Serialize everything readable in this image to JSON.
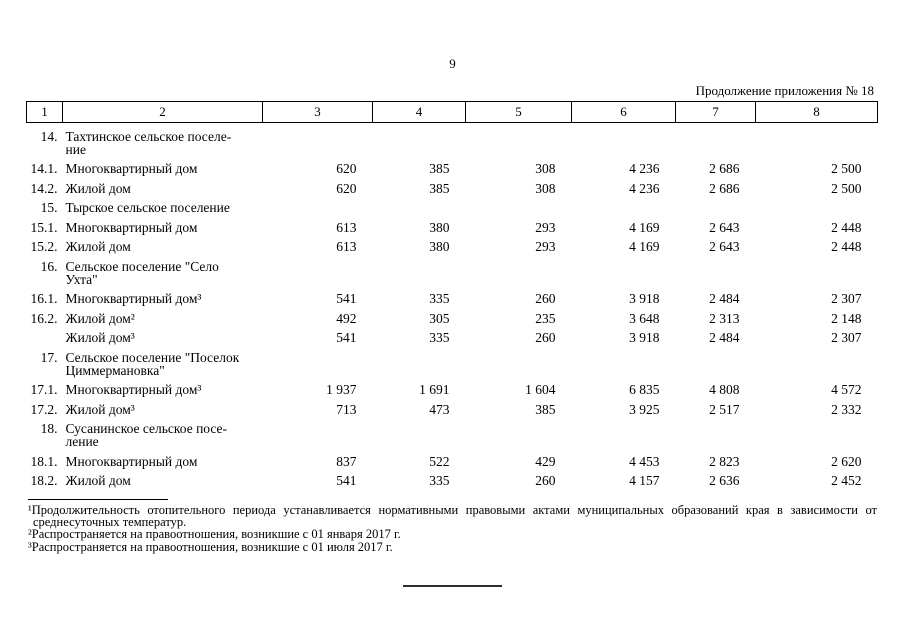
{
  "page": {
    "number": "9",
    "continuation": "Продолжение приложения № 18"
  },
  "table": {
    "header": [
      "1",
      "2",
      "3",
      "4",
      "5",
      "6",
      "7",
      "8"
    ],
    "rows": [
      {
        "num": "14.",
        "type": "group",
        "label": "Тахтинское сельское поселе-\nние",
        "values": []
      },
      {
        "num": "14.1.",
        "type": "item",
        "label": "Многоквартирный дом",
        "values": [
          "620",
          "385",
          "308",
          "4 236",
          "2 686",
          "2 500"
        ]
      },
      {
        "num": "14.2.",
        "type": "item",
        "label": "Жилой дом",
        "values": [
          "620",
          "385",
          "308",
          "4 236",
          "2 686",
          "2 500"
        ]
      },
      {
        "num": "15.",
        "type": "group",
        "label": "Тырское сельское поселение",
        "values": []
      },
      {
        "num": "15.1.",
        "type": "item",
        "label": "Многоквартирный дом",
        "values": [
          "613",
          "380",
          "293",
          "4 169",
          "2 643",
          "2 448"
        ]
      },
      {
        "num": "15.2.",
        "type": "item",
        "label": "Жилой дом",
        "values": [
          "613",
          "380",
          "293",
          "4 169",
          "2 643",
          "2 448"
        ]
      },
      {
        "num": "16.",
        "type": "group",
        "label": "Сельское поселение \"Село\nУхта\"",
        "values": []
      },
      {
        "num": "16.1.",
        "type": "item",
        "label": "Многоквартирный дом³",
        "values": [
          "541",
          "335",
          "260",
          "3 918",
          "2 484",
          "2 307"
        ]
      },
      {
        "num": "16.2.",
        "type": "item",
        "label": "Жилой дом²",
        "values": [
          "492",
          "305",
          "235",
          "3 648",
          "2 313",
          "2 148"
        ]
      },
      {
        "num": "",
        "type": "item",
        "label": "Жилой дом³",
        "values": [
          "541",
          "335",
          "260",
          "3 918",
          "2 484",
          "2 307"
        ]
      },
      {
        "num": "17.",
        "type": "group",
        "label": "Сельское поселение \"Поселок\nЦиммермановка\"",
        "values": []
      },
      {
        "num": "17.1.",
        "type": "item",
        "label": "Многоквартирный дом³",
        "values": [
          "1 937",
          "1 691",
          "1 604",
          "6 835",
          "4 808",
          "4 572"
        ]
      },
      {
        "num": "17.2.",
        "type": "item",
        "label": "Жилой дом³",
        "values": [
          "713",
          "473",
          "385",
          "3 925",
          "2 517",
          "2 332"
        ]
      },
      {
        "num": "18.",
        "type": "group",
        "label": "Сусанинское сельское посе-\nление",
        "values": []
      },
      {
        "num": "18.1.",
        "type": "item",
        "label": "Многоквартирный дом",
        "values": [
          "837",
          "522",
          "429",
          "4 453",
          "2 823",
          "2 620"
        ]
      },
      {
        "num": "18.2.",
        "type": "item",
        "label": "Жилой дом",
        "values": [
          "541",
          "335",
          "260",
          "4 157",
          "2 636",
          "2 452"
        ]
      }
    ]
  },
  "footnotes": [
    {
      "marker": "¹",
      "lines": [
        "Продолжительность отопительного периода устанавливается нормативными правовыми актами муниципальных образований края в зависимости от",
        "среднесуточных температур."
      ]
    },
    {
      "marker": "²",
      "lines": [
        "Распространяется на правоотношения, возникшие с 01 января 2017 г."
      ]
    },
    {
      "marker": "³",
      "lines": [
        "Распространяется на правоотношения, возникшие с 01 июля 2017 г."
      ]
    }
  ]
}
